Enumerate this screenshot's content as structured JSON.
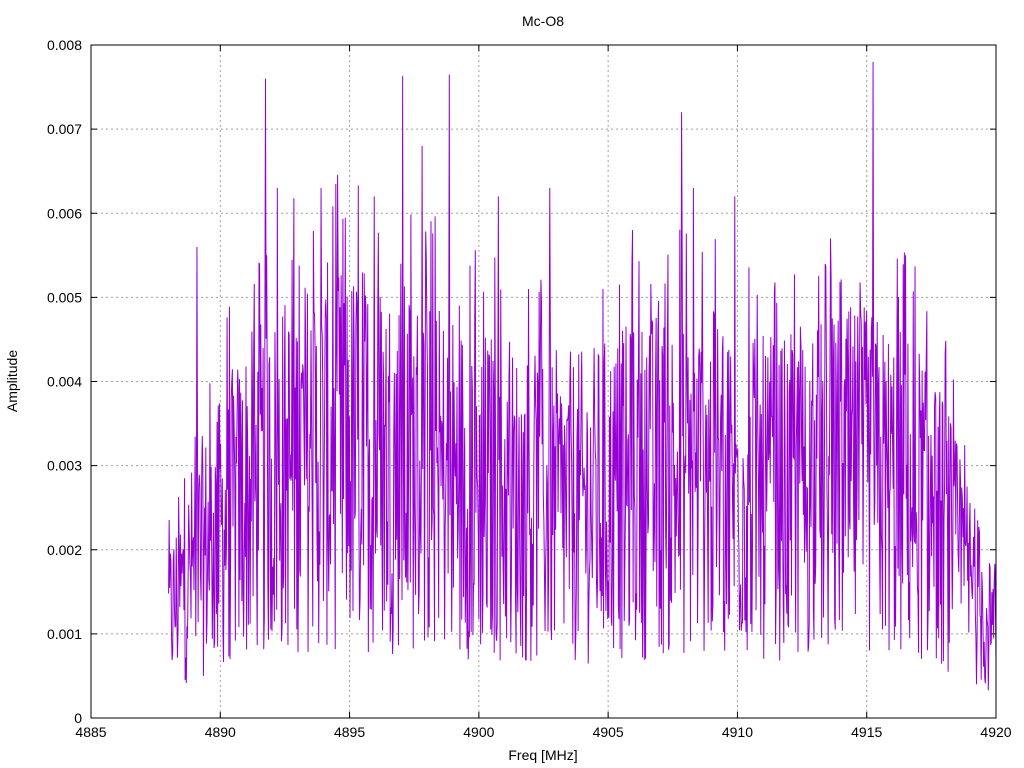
{
  "chart_data": {
    "type": "line",
    "title": "Mc-O8",
    "xlabel": "Freq [MHz]",
    "ylabel": "Amplitude",
    "xlim": [
      4885,
      4920
    ],
    "ylim": [
      0,
      0.008
    ],
    "x_ticks": [
      "4885",
      "4890",
      "4895",
      "4900",
      "4905",
      "4910",
      "4915",
      "4920"
    ],
    "y_ticks": [
      "0",
      "0.001",
      "0.002",
      "0.003",
      "0.004",
      "0.005",
      "0.006",
      "0.007",
      "0.008"
    ],
    "grid": true,
    "line_color": "#9400d3",
    "x_range": [
      4888.0,
      4920.0
    ],
    "envelope": {
      "x": [
        4888.0,
        4889.0,
        4890.0,
        4891.0,
        4892.0,
        4893.0,
        4894.0,
        4895.0,
        4896.0,
        4897.0,
        4898.0,
        4899.0,
        4900.0,
        4901.0,
        4902.0,
        4903.0,
        4904.0,
        4905.0,
        4906.0,
        4907.0,
        4908.0,
        4909.0,
        4910.0,
        4911.0,
        4912.0,
        4913.0,
        4914.0,
        4915.0,
        4916.0,
        4917.0,
        4918.0,
        4919.0,
        4920.0
      ],
      "y": [
        0.0012,
        0.0018,
        0.0022,
        0.0026,
        0.0028,
        0.003,
        0.0031,
        0.0031,
        0.0031,
        0.003,
        0.0029,
        0.0028,
        0.0027,
        0.0026,
        0.0025,
        0.0025,
        0.0025,
        0.0026,
        0.0027,
        0.0028,
        0.0028,
        0.0028,
        0.0027,
        0.0026,
        0.0026,
        0.0027,
        0.0028,
        0.0028,
        0.0027,
        0.0026,
        0.0022,
        0.0016,
        0.0009
      ]
    },
    "peaks": [
      {
        "x": 4889.1,
        "y": 0.0056
      },
      {
        "x": 4891.75,
        "y": 0.0076
      },
      {
        "x": 4892.2,
        "y": 0.0063
      },
      {
        "x": 4893.9,
        "y": 0.0063
      },
      {
        "x": 4895.95,
        "y": 0.0062
      },
      {
        "x": 4897.05,
        "y": 0.00763
      },
      {
        "x": 4897.8,
        "y": 0.0068
      },
      {
        "x": 4898.85,
        "y": 0.00765
      },
      {
        "x": 4900.75,
        "y": 0.0062
      },
      {
        "x": 4902.75,
        "y": 0.0063
      },
      {
        "x": 4904.8,
        "y": 0.0051
      },
      {
        "x": 4905.95,
        "y": 0.0058
      },
      {
        "x": 4907.85,
        "y": 0.0072
      },
      {
        "x": 4908.3,
        "y": 0.0063
      },
      {
        "x": 4909.9,
        "y": 0.0062
      },
      {
        "x": 4913.6,
        "y": 0.0057
      },
      {
        "x": 4915.25,
        "y": 0.0078
      },
      {
        "x": 4916.5,
        "y": 0.0055
      }
    ]
  }
}
